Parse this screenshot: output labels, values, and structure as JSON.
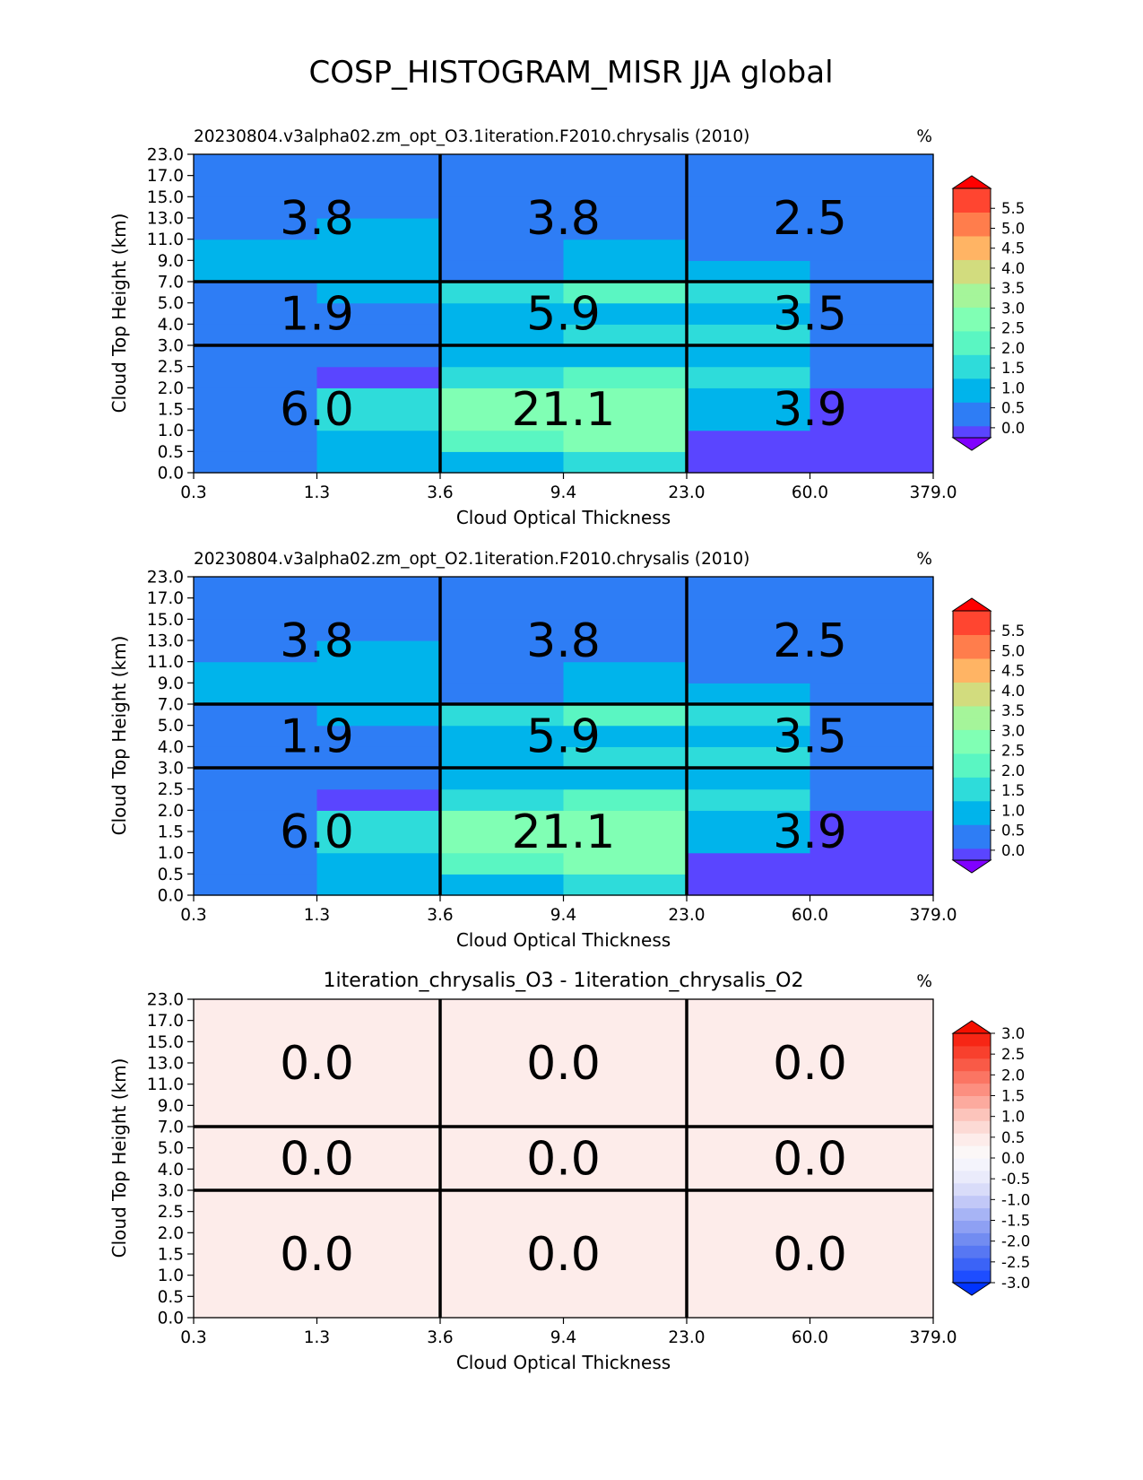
{
  "figure": {
    "title": "COSP_HISTOGRAM_MISR JJA global"
  },
  "chart_data": [
    {
      "type": "heatmap",
      "title": "20230804.v3alpha02.zm_opt_O3.1iteration.F2010.chrysalis (2010)",
      "units": "%",
      "xlabel": "Cloud Optical Thickness",
      "ylabel": "Cloud Top Height (km)",
      "x_ticks": [
        "0.3",
        "1.3",
        "3.6",
        "9.4",
        "23.0",
        "60.0",
        "379.0"
      ],
      "y_ticks": [
        "0.0",
        "0.5",
        "1.0",
        "1.5",
        "2.0",
        "2.5",
        "3.0",
        "4.0",
        "5.0",
        "7.0",
        "9.0",
        "11.0",
        "13.0",
        "15.0",
        "17.0",
        "23.0"
      ],
      "cells": [
        [
          0.3,
          0.8,
          0.8,
          1.4,
          0.2,
          0.0
        ],
        [
          0.3,
          0.8,
          1.8,
          2.3,
          0.2,
          0.0
        ],
        [
          0.3,
          1.5,
          2.7,
          2.7,
          0.8,
          0.0
        ],
        [
          0.3,
          1.5,
          2.3,
          2.7,
          0.8,
          0.0
        ],
        [
          0.3,
          0.2,
          1.3,
          2.2,
          1.4,
          0.3
        ],
        [
          0.3,
          0.3,
          0.8,
          0.8,
          0.8,
          0.3
        ],
        [
          0.3,
          0.3,
          0.8,
          1.4,
          1.3,
          0.3
        ],
        [
          0.3,
          0.3,
          0.8,
          0.8,
          0.8,
          0.3
        ],
        [
          0.3,
          0.8,
          1.4,
          2.1,
          1.3,
          0.3
        ],
        [
          0.8,
          0.8,
          0.6,
          0.8,
          0.8,
          0.3
        ],
        [
          0.8,
          0.8,
          0.3,
          0.8,
          0.3,
          0.3
        ],
        [
          0.3,
          0.8,
          0.3,
          0.3,
          0.3,
          0.3
        ],
        [
          0.3,
          0.3,
          0.3,
          0.3,
          0.3,
          0.3
        ],
        [
          0.3,
          0.3,
          0.3,
          0.3,
          0.3,
          0.3
        ],
        [
          0.3,
          0.3,
          0.3,
          0.3,
          0.3,
          0.3
        ]
      ],
      "box_values": [
        [
          "6.0",
          "21.1",
          "3.9"
        ],
        [
          "1.9",
          "5.9",
          "3.5"
        ],
        [
          "3.8",
          "3.8",
          "2.5"
        ]
      ],
      "colorbar": {
        "levels": [
          -0.25,
          0.0,
          0.25,
          0.5,
          0.75,
          1.0,
          1.25,
          1.5,
          1.75,
          2.0,
          2.25,
          2.5,
          2.75,
          3.0,
          3.25,
          3.5,
          3.75,
          4.0,
          4.25,
          4.5,
          4.75,
          5.0,
          5.25,
          5.5,
          5.75,
          6.0
        ],
        "colors": [
          "#8000ff",
          "#5a45ff",
          "#2e7df5",
          "#2e7df5",
          "#00b4eb",
          "#00b4eb",
          "#2edcda",
          "#2edcda",
          "#5af6c2",
          "#5af6c2",
          "#80ffb4",
          "#80ffb4",
          "#a5f59a",
          "#a5f59a",
          "#d2dc7e",
          "#d2dc7e",
          "#ffb464",
          "#ffb464",
          "#ff7d4c",
          "#ff7d4c",
          "#ff4530",
          "#ff4530",
          "#ff0000"
        ],
        "tick_labels": [
          "0.0",
          "0.5",
          "1.0",
          "1.5",
          "2.0",
          "2.5",
          "3.0",
          "3.5",
          "4.0",
          "4.5",
          "5.0",
          "5.5"
        ]
      }
    },
    {
      "type": "heatmap",
      "title": "20230804.v3alpha02.zm_opt_O2.1iteration.F2010.chrysalis (2010)",
      "units": "%",
      "xlabel": "Cloud Optical Thickness",
      "ylabel": "Cloud Top Height (km)",
      "x_ticks": [
        "0.3",
        "1.3",
        "3.6",
        "9.4",
        "23.0",
        "60.0",
        "379.0"
      ],
      "y_ticks": [
        "0.0",
        "0.5",
        "1.0",
        "1.5",
        "2.0",
        "2.5",
        "3.0",
        "4.0",
        "5.0",
        "7.0",
        "9.0",
        "11.0",
        "13.0",
        "15.0",
        "17.0",
        "23.0"
      ],
      "cells": [
        [
          0.3,
          0.8,
          0.8,
          1.4,
          0.2,
          0.0
        ],
        [
          0.3,
          0.8,
          1.8,
          2.3,
          0.2,
          0.0
        ],
        [
          0.3,
          1.5,
          2.7,
          2.7,
          0.8,
          0.0
        ],
        [
          0.3,
          1.5,
          2.3,
          2.7,
          0.8,
          0.0
        ],
        [
          0.3,
          0.2,
          1.3,
          2.2,
          1.4,
          0.3
        ],
        [
          0.3,
          0.3,
          0.8,
          0.8,
          0.8,
          0.3
        ],
        [
          0.3,
          0.3,
          0.8,
          1.4,
          1.3,
          0.3
        ],
        [
          0.3,
          0.3,
          0.8,
          0.8,
          0.8,
          0.3
        ],
        [
          0.3,
          0.8,
          1.4,
          2.1,
          1.3,
          0.3
        ],
        [
          0.8,
          0.8,
          0.6,
          0.8,
          0.8,
          0.3
        ],
        [
          0.8,
          0.8,
          0.3,
          0.8,
          0.3,
          0.3
        ],
        [
          0.3,
          0.8,
          0.3,
          0.3,
          0.3,
          0.3
        ],
        [
          0.3,
          0.3,
          0.3,
          0.3,
          0.3,
          0.3
        ],
        [
          0.3,
          0.3,
          0.3,
          0.3,
          0.3,
          0.3
        ],
        [
          0.3,
          0.3,
          0.3,
          0.3,
          0.3,
          0.3
        ]
      ],
      "box_values": [
        [
          "6.0",
          "21.1",
          "3.9"
        ],
        [
          "1.9",
          "5.9",
          "3.5"
        ],
        [
          "3.8",
          "3.8",
          "2.5"
        ]
      ],
      "colorbar": {
        "levels": [
          -0.25,
          0.0,
          0.25,
          0.5,
          0.75,
          1.0,
          1.25,
          1.5,
          1.75,
          2.0,
          2.25,
          2.5,
          2.75,
          3.0,
          3.25,
          3.5,
          3.75,
          4.0,
          4.25,
          4.5,
          4.75,
          5.0,
          5.25,
          5.5,
          5.75,
          6.0
        ],
        "colors": [
          "#8000ff",
          "#5a45ff",
          "#2e7df5",
          "#2e7df5",
          "#00b4eb",
          "#00b4eb",
          "#2edcda",
          "#2edcda",
          "#5af6c2",
          "#5af6c2",
          "#80ffb4",
          "#80ffb4",
          "#a5f59a",
          "#a5f59a",
          "#d2dc7e",
          "#d2dc7e",
          "#ffb464",
          "#ffb464",
          "#ff7d4c",
          "#ff7d4c",
          "#ff4530",
          "#ff4530",
          "#ff0000"
        ],
        "tick_labels": [
          "0.0",
          "0.5",
          "1.0",
          "1.5",
          "2.0",
          "2.5",
          "3.0",
          "3.5",
          "4.0",
          "4.5",
          "5.0",
          "5.5"
        ]
      }
    },
    {
      "type": "heatmap",
      "title": "1iteration_chrysalis_O3 - 1iteration_chrysalis_O2",
      "units": "%",
      "xlabel": "Cloud Optical Thickness",
      "ylabel": "Cloud Top Height (km)",
      "x_ticks": [
        "0.3",
        "1.3",
        "3.6",
        "9.4",
        "23.0",
        "60.0",
        "379.0"
      ],
      "y_ticks": [
        "0.0",
        "0.5",
        "1.0",
        "1.5",
        "2.0",
        "2.5",
        "3.0",
        "4.0",
        "5.0",
        "7.0",
        "9.0",
        "11.0",
        "13.0",
        "15.0",
        "17.0",
        "23.0"
      ],
      "cells": [
        [
          0,
          0,
          0,
          0,
          0,
          0
        ],
        [
          0,
          0,
          0,
          0,
          0,
          0
        ],
        [
          0,
          0,
          0,
          0,
          0,
          0
        ],
        [
          0,
          0,
          0,
          0,
          0,
          0
        ],
        [
          0,
          0,
          0,
          0,
          0,
          0
        ],
        [
          0,
          0,
          0,
          0,
          0,
          0
        ],
        [
          0,
          0,
          0,
          0,
          0,
          0
        ],
        [
          0,
          0,
          0,
          0,
          0,
          0
        ],
        [
          0,
          0,
          0,
          0,
          0,
          0
        ],
        [
          0,
          0,
          0,
          0,
          0,
          0
        ],
        [
          0,
          0,
          0,
          0,
          0,
          0
        ],
        [
          0,
          0,
          0,
          0,
          0,
          0
        ],
        [
          0,
          0,
          0,
          0,
          0,
          0
        ],
        [
          0,
          0,
          0,
          0,
          0,
          0
        ],
        [
          0,
          0,
          0,
          0,
          0,
          0
        ]
      ],
      "box_values": [
        [
          "0.0",
          "0.0",
          "0.0"
        ],
        [
          "0.0",
          "0.0",
          "0.0"
        ],
        [
          "0.0",
          "0.0",
          "0.0"
        ]
      ],
      "colorbar": {
        "levels": [
          -3.0,
          -2.75,
          -2.5,
          -2.25,
          -2.0,
          -1.75,
          -1.5,
          -1.25,
          -1.0,
          -0.75,
          -0.5,
          -0.25,
          0.0,
          0.25,
          0.5,
          0.75,
          1.0,
          1.25,
          1.5,
          1.75,
          2.0,
          2.25,
          2.5,
          2.75,
          3.0
        ],
        "colors": [
          "#0033ff",
          "#1e4dff",
          "#3b63f7",
          "#5777f3",
          "#728cf1",
          "#8ea0f3",
          "#a7b4f5",
          "#c2c8f7",
          "#d9dcf9",
          "#eaebfb",
          "#f4f4fc",
          "#fbf7f7",
          "#fdecea",
          "#fcdad5",
          "#fcc4bb",
          "#fcaa9e",
          "#fc8f80",
          "#fb7563",
          "#f95a47",
          "#f8402d",
          "#f72615",
          "#f50f00"
        ],
        "tick_labels": [
          "-3.0",
          "-2.5",
          "-2.0",
          "-1.5",
          "-1.0",
          "-0.5",
          "0.0",
          "0.5",
          "1.0",
          "1.5",
          "2.0",
          "2.5",
          "3.0"
        ]
      }
    }
  ]
}
